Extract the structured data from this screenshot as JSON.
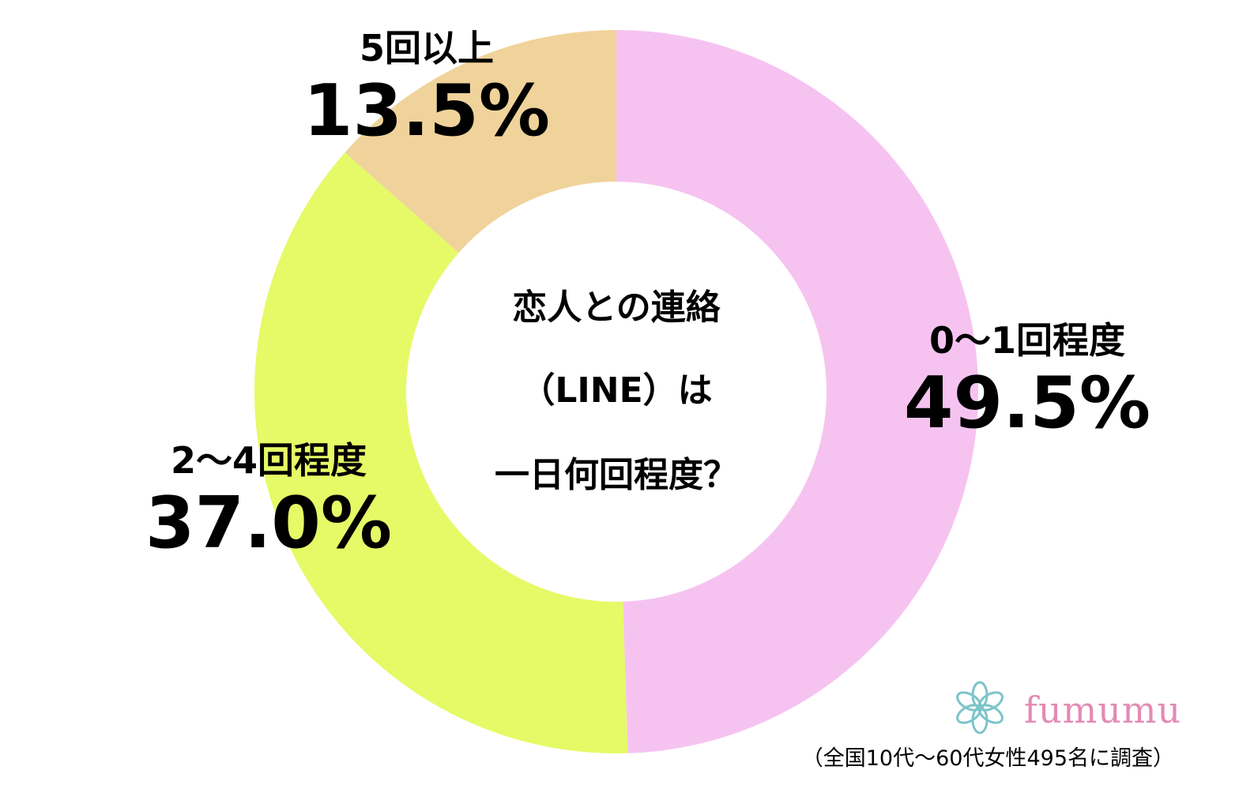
{
  "chart_data": {
    "type": "pie",
    "style": "donut",
    "title_lines": [
      "恋人との連絡",
      "（LINE）は",
      "一日何回程度？"
    ],
    "slices": [
      {
        "label": "0〜1回程度",
        "value": 49.5,
        "value_label": "49.5%",
        "color": "#f6c3f1"
      },
      {
        "label": "2〜4回程度",
        "value": 37.0,
        "value_label": "37.0%",
        "color": "#e5fa66"
      },
      {
        "label": "5回以上",
        "value": 13.5,
        "value_label": "13.5%",
        "color": "#f0d39a"
      }
    ],
    "start": "12 o'clock",
    "direction": "clockwise",
    "legend": "none"
  },
  "branding": {
    "logo_text": "fumumu",
    "logo_color": "#e38bb4",
    "icon_color": "#7cc4c9"
  },
  "footnote": "（全国10代〜60代女性495名に調査）"
}
